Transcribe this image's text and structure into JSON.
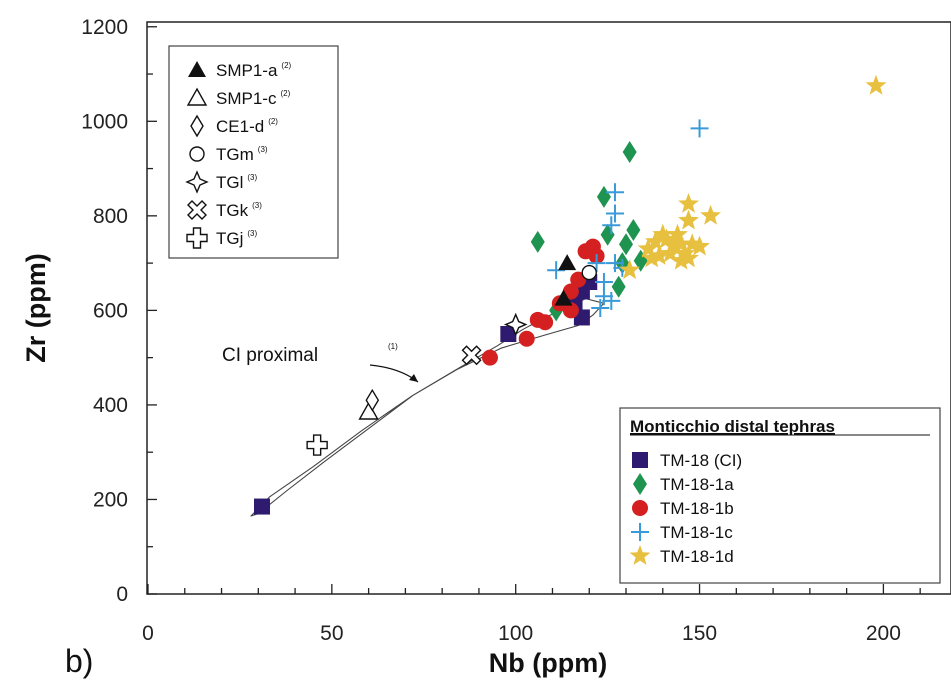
{
  "chart_data": {
    "type": "scatter",
    "panel_label": "b)",
    "xlabel": "Nb (ppm)",
    "ylabel": "Zr (ppm)",
    "xlim": [
      0,
      220
    ],
    "ylim": [
      0,
      1200
    ],
    "x_ticks": [
      "0",
      "50",
      "100",
      "150",
      "200"
    ],
    "y_ticks": [
      "0",
      "200",
      "400",
      "600",
      "800",
      "1000",
      "1200"
    ],
    "reference_legend": [
      {
        "name": "SMP1-a",
        "ref": "(2)",
        "marker": "triangle-filled"
      },
      {
        "name": "SMP1-c",
        "ref": "(2)",
        "marker": "triangle-open"
      },
      {
        "name": "CE1-d",
        "ref": "(2)",
        "marker": "diamond-open"
      },
      {
        "name": "TGm",
        "ref": "(3)",
        "marker": "circle-open"
      },
      {
        "name": "TGl",
        "ref": "(3)",
        "marker": "diamond-cross-open"
      },
      {
        "name": "TGk",
        "ref": "(3)",
        "marker": "x-open"
      },
      {
        "name": "TGj",
        "ref": "(3)",
        "marker": "cross-open"
      }
    ],
    "tephra_legend_title": "Monticchio distal tephras",
    "annotation": {
      "text": "CI proximal",
      "ref": "(1)"
    },
    "reference_points": [
      {
        "name": "SMP1-a",
        "points": [
          [
            114,
            700
          ],
          [
            113,
            625
          ]
        ]
      },
      {
        "name": "SMP1-c",
        "points": [
          [
            60,
            385
          ]
        ]
      },
      {
        "name": "CE1-d",
        "points": [
          [
            61,
            410
          ]
        ]
      },
      {
        "name": "TGm",
        "points": [
          [
            120,
            680
          ]
        ]
      },
      {
        "name": "TGl",
        "points": [
          [
            100,
            570
          ]
        ]
      },
      {
        "name": "TGk",
        "points": [
          [
            88,
            505
          ]
        ]
      },
      {
        "name": "TGj",
        "points": [
          [
            46,
            315
          ]
        ]
      }
    ],
    "series": [
      {
        "name": "TM-18 (CI)",
        "color": "#2e1a6e",
        "marker": "square",
        "points": [
          [
            31,
            185
          ],
          [
            98,
            550
          ],
          [
            118,
            585
          ],
          [
            118,
            640
          ],
          [
            120,
            660
          ],
          [
            116,
            615
          ]
        ]
      },
      {
        "name": "TM-18-1a",
        "color": "#1e9450",
        "marker": "diamond",
        "points": [
          [
            106,
            745
          ],
          [
            124,
            840
          ],
          [
            131,
            935
          ],
          [
            130,
            740
          ],
          [
            125,
            760
          ],
          [
            129,
            700
          ],
          [
            132,
            770
          ],
          [
            121,
            720
          ],
          [
            111,
            600
          ],
          [
            128,
            650
          ],
          [
            134,
            705
          ]
        ]
      },
      {
        "name": "TM-18-1b",
        "color": "#d42020",
        "marker": "circle",
        "points": [
          [
            93,
            500
          ],
          [
            103,
            540
          ],
          [
            106,
            580
          ],
          [
            108,
            575
          ],
          [
            115,
            640
          ],
          [
            119,
            725
          ],
          [
            121,
            735
          ],
          [
            115,
            600
          ],
          [
            117,
            665
          ],
          [
            112,
            615
          ],
          [
            122,
            715
          ]
        ]
      },
      {
        "name": "TM-18-1c",
        "color": "#3a9ad9",
        "marker": "plus",
        "points": [
          [
            150,
            985
          ],
          [
            127,
            850
          ],
          [
            127,
            805
          ],
          [
            126,
            780
          ],
          [
            111,
            685
          ],
          [
            122,
            700
          ],
          [
            124,
            660
          ],
          [
            124,
            630
          ],
          [
            126,
            620
          ],
          [
            123,
            605
          ],
          [
            127,
            700
          ],
          [
            129,
            690
          ]
        ]
      },
      {
        "name": "TM-18-1d",
        "color": "#e8c040",
        "marker": "star",
        "points": [
          [
            198,
            1075
          ],
          [
            147,
            825
          ],
          [
            153,
            800
          ],
          [
            147,
            790
          ],
          [
            140,
            760
          ],
          [
            143,
            735
          ],
          [
            138,
            745
          ],
          [
            142,
            720
          ],
          [
            145,
            705
          ],
          [
            148,
            740
          ],
          [
            136,
            730
          ],
          [
            141,
            750
          ],
          [
            144,
            760
          ],
          [
            146,
            720
          ],
          [
            139,
            715
          ],
          [
            150,
            735
          ],
          [
            147,
            710
          ],
          [
            137,
            710
          ],
          [
            131,
            685
          ],
          [
            143,
            745
          ],
          [
            145,
            740
          ]
        ]
      }
    ],
    "envelope": {
      "label": "CI proximal"
    },
    "grid": false,
    "legend_placement": [
      "top-left",
      "bottom-right"
    ]
  }
}
